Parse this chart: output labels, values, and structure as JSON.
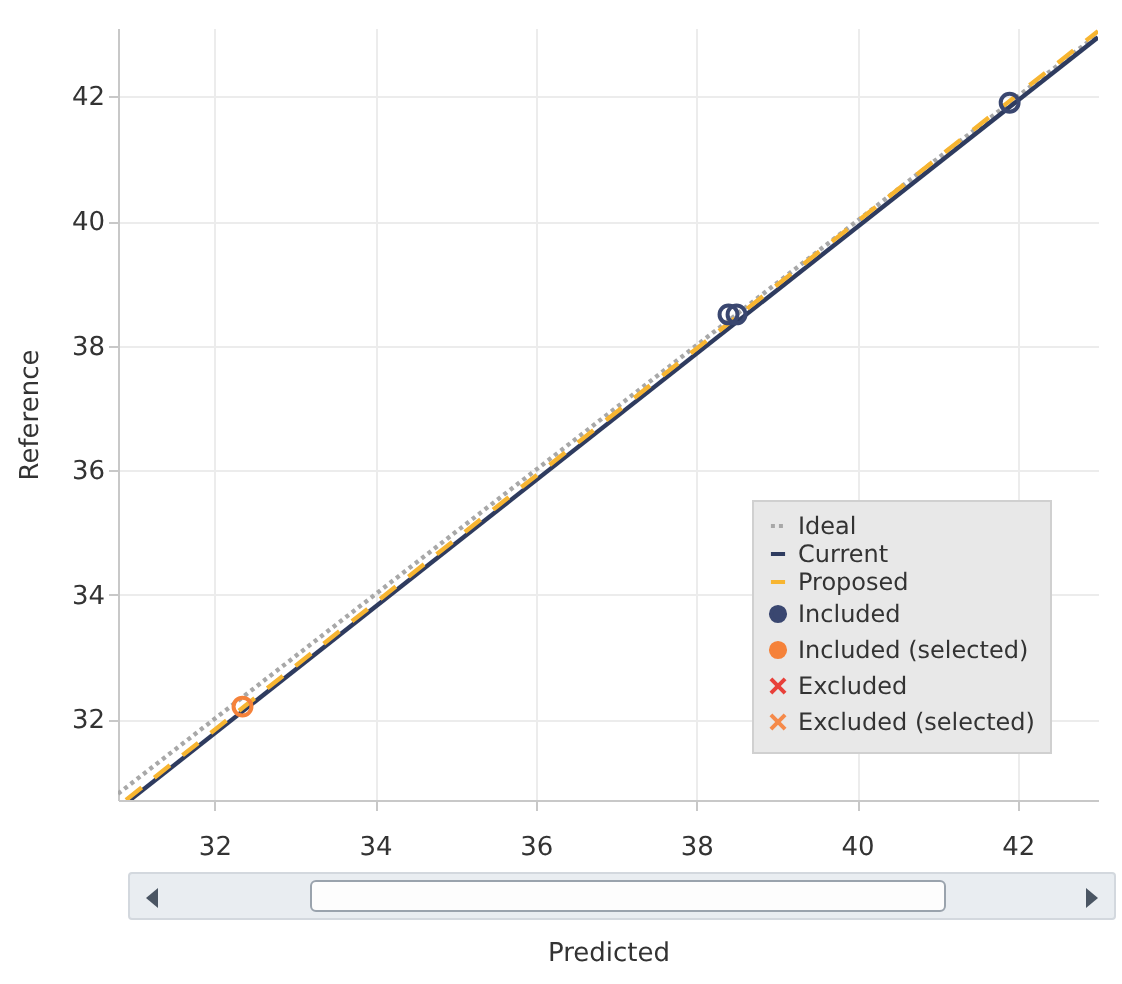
{
  "chart_data": {
    "type": "line",
    "xlabel": "Predicted",
    "ylabel": "Reference",
    "xlim": [
      30.8,
      43
    ],
    "ylim": [
      30.7,
      43.1
    ],
    "xticks": [
      32,
      34,
      36,
      38,
      40,
      42
    ],
    "yticks": [
      32,
      34,
      36,
      38,
      40,
      42
    ],
    "grid": true,
    "legend": "bottom right",
    "series": [
      {
        "name": "Ideal",
        "color": "#a8a8a8",
        "line_style": "dotted",
        "x": [
          30.8,
          43
        ],
        "values": [
          30.8,
          43
        ]
      },
      {
        "name": "Current",
        "color": "#2e3b5f",
        "line_style": "solid",
        "x": [
          30.95,
          43
        ],
        "values": [
          30.7,
          42.95
        ]
      },
      {
        "name": "Proposed",
        "color": "#f7b531",
        "line_style": "dashed",
        "x": [
          30.9,
          43
        ],
        "values": [
          30.7,
          43.05
        ]
      },
      {
        "name": "Included",
        "type": "scatter",
        "color": "#3a4770",
        "marker": "circle",
        "x": [
          38.4,
          38.5,
          41.9
        ],
        "values": [
          38.5,
          38.5,
          41.9
        ]
      },
      {
        "name": "Included (selected)",
        "type": "scatter",
        "color": "#f5823a",
        "marker": "circle",
        "x": [
          32.35
        ],
        "values": [
          32.2
        ]
      },
      {
        "name": "Excluded",
        "type": "scatter",
        "color": "#e8403a",
        "marker": "cross"
      },
      {
        "name": "Excluded (selected)",
        "type": "scatter",
        "color": "#f58a4a",
        "marker": "cross"
      }
    ]
  }
}
